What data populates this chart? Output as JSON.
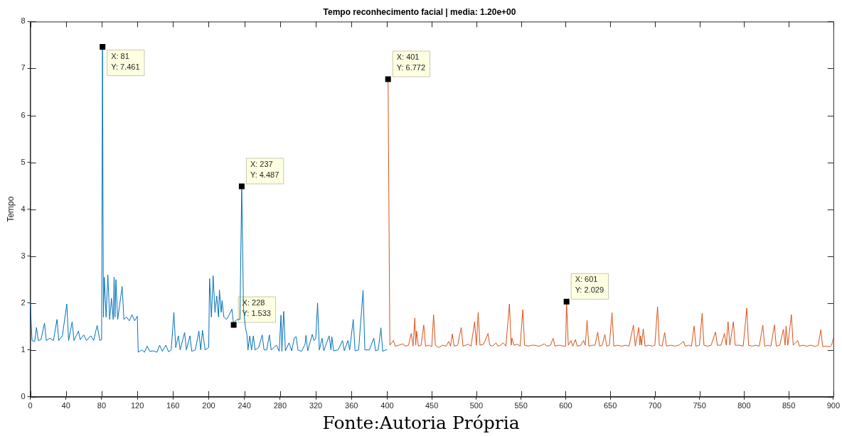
{
  "chart_data": {
    "type": "line",
    "title": "Tempo reconhecimento facial | media: 1.20e+00",
    "ylabel": "Tempo",
    "xlim": [
      0,
      900
    ],
    "xticks": [
      0,
      40,
      80,
      120,
      160,
      200,
      240,
      280,
      320,
      360,
      400,
      450,
      500,
      550,
      600,
      650,
      700,
      750,
      800,
      850,
      900
    ],
    "ylim": [
      0,
      8
    ],
    "yticks": [
      0,
      1,
      2,
      3,
      4,
      5,
      6,
      7,
      8
    ],
    "grid": false,
    "legend": false,
    "marker": "none",
    "line_style": "solid",
    "series": [
      {
        "color": "#0072bd",
        "x": [
          0,
          2,
          5,
          7,
          9,
          12,
          16,
          18,
          22,
          26,
          30,
          32,
          36,
          41,
          43,
          47,
          49,
          54,
          56,
          60,
          63,
          68,
          71,
          75,
          78,
          80,
          81,
          82,
          83,
          85,
          87,
          89,
          91,
          93,
          94,
          95,
          96,
          98,
          103,
          105,
          108,
          111,
          114,
          117,
          120,
          121,
          125,
          128,
          131,
          134,
          138,
          142,
          145,
          148,
          152,
          155,
          158,
          161,
          163,
          166,
          168,
          173,
          175,
          179,
          181,
          185,
          189,
          191,
          193,
          196,
          200,
          201,
          203,
          205,
          207,
          209,
          211,
          212,
          214,
          215,
          217,
          220,
          223,
          226,
          228,
          230,
          232,
          235,
          237,
          239,
          241,
          243,
          244,
          246,
          248,
          250,
          252,
          256,
          260,
          262,
          265,
          268,
          270,
          276,
          279,
          281,
          282,
          284,
          286,
          290,
          293,
          296,
          298,
          300,
          304,
          308,
          309,
          311,
          316,
          318,
          320,
          322,
          324,
          327,
          329,
          335,
          337,
          338,
          340,
          345,
          350,
          352,
          356,
          358,
          362,
          364,
          368,
          373,
          375,
          380,
          385,
          387,
          390,
          393,
          395,
          398,
          400
        ],
        "values": [
          2.05,
          1.2,
          1.18,
          1.48,
          1.2,
          1.22,
          1.57,
          1.2,
          1.25,
          1.2,
          1.65,
          1.2,
          1.3,
          1.98,
          1.2,
          1.6,
          1.2,
          1.4,
          1.22,
          1.32,
          1.2,
          1.3,
          1.2,
          1.52,
          1.2,
          1.22,
          7.461,
          1.7,
          2.55,
          1.7,
          2.6,
          1.65,
          2.1,
          1.65,
          2.55,
          1.7,
          2.5,
          1.65,
          2.35,
          1.65,
          1.7,
          1.62,
          1.75,
          1.62,
          1.72,
          0.95,
          1.0,
          0.95,
          1.08,
          0.97,
          0.98,
          0.95,
          1.1,
          0.97,
          1.1,
          0.96,
          1.0,
          1.8,
          1.05,
          1.3,
          1.0,
          1.37,
          1.0,
          1.3,
          0.97,
          1.0,
          1.4,
          1.0,
          1.42,
          1.0,
          1.05,
          2.52,
          1.7,
          2.58,
          1.8,
          2.15,
          1.7,
          2.28,
          1.8,
          2.05,
          1.7,
          1.65,
          1.75,
          1.87,
          1.533,
          1.62,
          1.65,
          1.65,
          4.487,
          1.9,
          1.5,
          1.3,
          1.0,
          1.3,
          1.0,
          1.3,
          1.0,
          1.05,
          1.32,
          1.0,
          1.0,
          1.32,
          1.0,
          1.1,
          0.97,
          1.74,
          0.97,
          1.82,
          0.98,
          1.15,
          0.98,
          1.26,
          1.28,
          1.0,
          0.97,
          1.12,
          1.31,
          0.98,
          1.33,
          1.2,
          1.25,
          2.0,
          1.0,
          1.25,
          0.98,
          1.3,
          1.0,
          1.28,
          0.98,
          1.0,
          1.2,
          0.98,
          1.2,
          1.0,
          1.65,
          0.98,
          1.0,
          2.27,
          1.0,
          1.0,
          1.25,
          0.98,
          1.0,
          1.47,
          0.97,
          1.0,
          1.0
        ]
      },
      {
        "color": "#d95319",
        "x": [
          401,
          403,
          407,
          409,
          413,
          418,
          420,
          424,
          427,
          429,
          431,
          432,
          433,
          435,
          438,
          441,
          443,
          447,
          450,
          452,
          454,
          458,
          462,
          466,
          469,
          471,
          473,
          475,
          479,
          483,
          485,
          488,
          491,
          494,
          498,
          500,
          502,
          504,
          508,
          513,
          515,
          518,
          522,
          524,
          527,
          530,
          533,
          537,
          539,
          540,
          542,
          546,
          549,
          552,
          554,
          558,
          562,
          565,
          570,
          573,
          576,
          579,
          583,
          586,
          588,
          593,
          598,
          600,
          601,
          603,
          606,
          608,
          611,
          613,
          617,
          620,
          622,
          624,
          626,
          630,
          633,
          636,
          638,
          641,
          644,
          646,
          649,
          652,
          654,
          658,
          663,
          667,
          671,
          676,
          678,
          682,
          683,
          684,
          685,
          687,
          689,
          693,
          697,
          700,
          703,
          705,
          708,
          711,
          713,
          718,
          722,
          727,
          732,
          734,
          738,
          741,
          744,
          746,
          750,
          753,
          755,
          759,
          763,
          768,
          770,
          774,
          778,
          780,
          782,
          784,
          788,
          790,
          795,
          799,
          803,
          805,
          809,
          813,
          817,
          821,
          823,
          827,
          830,
          834,
          836,
          840,
          844,
          846,
          847,
          849,
          853,
          855,
          860,
          862,
          866,
          870,
          875,
          880,
          883,
          886,
          888,
          892,
          896,
          898,
          900
        ],
        "values": [
          6.772,
          1.1,
          1.2,
          1.08,
          1.1,
          1.13,
          1.08,
          1.1,
          1.35,
          1.08,
          1.68,
          1.1,
          1.4,
          1.08,
          1.1,
          1.53,
          1.08,
          1.1,
          1.07,
          1.75,
          1.1,
          1.05,
          1.1,
          1.08,
          1.18,
          1.08,
          1.34,
          1.08,
          1.1,
          1.48,
          1.08,
          1.1,
          1.12,
          1.08,
          1.6,
          1.1,
          1.8,
          1.1,
          1.12,
          1.35,
          1.1,
          1.08,
          1.15,
          1.08,
          1.1,
          1.15,
          1.08,
          1.98,
          1.1,
          1.25,
          1.1,
          1.12,
          1.08,
          1.86,
          1.1,
          1.08,
          1.1,
          1.1,
          1.08,
          1.1,
          1.13,
          1.08,
          1.1,
          1.25,
          1.08,
          1.1,
          1.08,
          1.08,
          2.029,
          1.1,
          1.2,
          1.08,
          1.22,
          1.08,
          1.1,
          1.2,
          1.1,
          1.63,
          1.08,
          1.1,
          1.1,
          1.38,
          1.08,
          1.1,
          1.33,
          1.08,
          1.1,
          1.79,
          1.08,
          1.1,
          1.08,
          1.1,
          1.08,
          1.53,
          1.08,
          1.48,
          1.1,
          1.3,
          1.1,
          1.45,
          1.08,
          1.1,
          1.08,
          1.1,
          1.92,
          1.1,
          1.08,
          1.37,
          1.08,
          1.1,
          1.08,
          1.1,
          1.18,
          1.08,
          1.1,
          1.08,
          1.51,
          1.08,
          1.1,
          1.78,
          1.1,
          1.08,
          1.1,
          1.38,
          1.1,
          1.1,
          1.35,
          1.1,
          1.6,
          1.1,
          1.6,
          1.1,
          1.1,
          1.08,
          1.89,
          1.1,
          1.08,
          1.1,
          1.08,
          1.53,
          1.08,
          1.1,
          1.08,
          1.53,
          1.08,
          1.1,
          1.44,
          1.1,
          1.51,
          1.1,
          1.75,
          1.1,
          1.2,
          1.08,
          1.1,
          1.08,
          1.1,
          1.07,
          1.1,
          1.43,
          1.07,
          1.08,
          1.07,
          1.1,
          1.25
        ]
      }
    ],
    "annotations": [
      {
        "text": "X: 81\nY: 7.461",
        "x": 81,
        "y": 7.461
      },
      {
        "text": "X: 228\nY: 1.533",
        "x": 228,
        "y": 1.533
      },
      {
        "text": "X: 237\nY: 4.487",
        "x": 237,
        "y": 4.487
      },
      {
        "text": "X: 401\nY: 6.772",
        "x": 401,
        "y": 6.772
      },
      {
        "text": "X: 601\nY: 2.029",
        "x": 601,
        "y": 2.029
      },
      "Fonte:Autoria Própria"
    ]
  }
}
